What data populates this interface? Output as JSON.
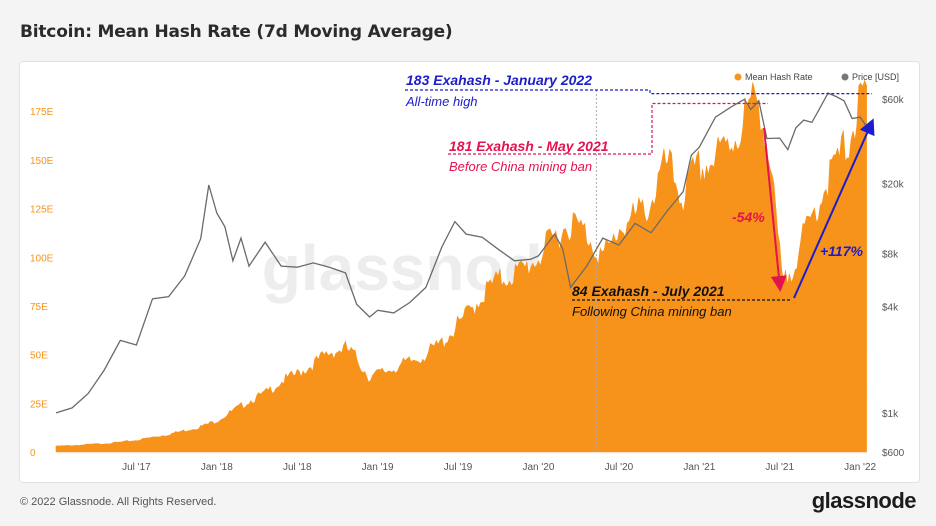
{
  "header": {
    "title": "Bitcoin: Mean Hash Rate (7d Moving Average)"
  },
  "footer": {
    "copyright": "© 2022 Glassnode. All Rights Reserved.",
    "brand": "glassnode"
  },
  "watermark": "glassnode",
  "colors": {
    "hash": "#f7931a",
    "price": "#777777",
    "blue": "#1d1dc9",
    "pink": "#e3134f",
    "black": "#111111"
  },
  "chart_data": {
    "type": "area",
    "title": "Bitcoin: Mean Hash Rate (7d Moving Average)",
    "x_range": [
      2017.0,
      2022.08
    ],
    "x_ticks": [
      {
        "t": 2017.5,
        "label": "Jul '17"
      },
      {
        "t": 2018.0,
        "label": "Jan '18"
      },
      {
        "t": 2018.5,
        "label": "Jul '18"
      },
      {
        "t": 2019.0,
        "label": "Jan '19"
      },
      {
        "t": 2019.5,
        "label": "Jul '19"
      },
      {
        "t": 2020.0,
        "label": "Jan '20"
      },
      {
        "t": 2020.5,
        "label": "Jul '20"
      },
      {
        "t": 2021.0,
        "label": "Jan '21"
      },
      {
        "t": 2021.5,
        "label": "Jul '21"
      },
      {
        "t": 2022.0,
        "label": "Jan '22"
      }
    ],
    "left_axis": {
      "unit": "EH/s",
      "range": [
        0,
        190
      ],
      "ticks": [
        {
          "v": 0,
          "label": "0"
        },
        {
          "v": 25,
          "label": "25E"
        },
        {
          "v": 50,
          "label": "50E"
        },
        {
          "v": 75,
          "label": "75E"
        },
        {
          "v": 100,
          "label": "100E"
        },
        {
          "v": 125,
          "label": "125E"
        },
        {
          "v": 150,
          "label": "150E"
        },
        {
          "v": 175,
          "label": "175E"
        }
      ]
    },
    "right_axis": {
      "unit": "USD",
      "scale": "log",
      "range": [
        600,
        75000
      ],
      "ticks": [
        {
          "v": 600,
          "label": "$600"
        },
        {
          "v": 1000,
          "label": "$1k"
        },
        {
          "v": 4000,
          "label": "$4k"
        },
        {
          "v": 8000,
          "label": "$8k"
        },
        {
          "v": 20000,
          "label": "$20k"
        },
        {
          "v": 60000,
          "label": "$60k"
        }
      ]
    },
    "legend": [
      {
        "name": "Mean Hash Rate",
        "color": "#f7931a"
      },
      {
        "name": "Price [USD]",
        "color": "#777777"
      }
    ],
    "series": [
      {
        "name": "Mean Hash Rate",
        "axis": "left",
        "unit": "EH/s",
        "points": [
          [
            2017.0,
            3
          ],
          [
            2017.1,
            3.3
          ],
          [
            2017.2,
            3.8
          ],
          [
            2017.3,
            4.3
          ],
          [
            2017.4,
            5
          ],
          [
            2017.5,
            6
          ],
          [
            2017.6,
            7.5
          ],
          [
            2017.7,
            9
          ],
          [
            2017.8,
            11
          ],
          [
            2017.9,
            13
          ],
          [
            2018.0,
            16
          ],
          [
            2018.1,
            21
          ],
          [
            2018.2,
            26
          ],
          [
            2018.3,
            30
          ],
          [
            2018.4,
            36
          ],
          [
            2018.5,
            40
          ],
          [
            2018.6,
            45
          ],
          [
            2018.7,
            51
          ],
          [
            2018.8,
            53
          ],
          [
            2018.85,
            50
          ],
          [
            2018.9,
            44
          ],
          [
            2018.95,
            38
          ],
          [
            2019.0,
            40
          ],
          [
            2019.1,
            43
          ],
          [
            2019.2,
            46
          ],
          [
            2019.3,
            50
          ],
          [
            2019.4,
            56
          ],
          [
            2019.5,
            65
          ],
          [
            2019.6,
            75
          ],
          [
            2019.7,
            85
          ],
          [
            2019.8,
            90
          ],
          [
            2019.9,
            93
          ],
          [
            2020.0,
            100
          ],
          [
            2020.1,
            110
          ],
          [
            2020.2,
            118
          ],
          [
            2020.3,
            112
          ],
          [
            2020.4,
            100
          ],
          [
            2020.45,
            105
          ],
          [
            2020.5,
            115
          ],
          [
            2020.6,
            120
          ],
          [
            2020.7,
            128
          ],
          [
            2020.75,
            140
          ],
          [
            2020.8,
            148
          ],
          [
            2020.9,
            130
          ],
          [
            2020.95,
            140
          ],
          [
            2021.0,
            145
          ],
          [
            2021.1,
            150
          ],
          [
            2021.2,
            160
          ],
          [
            2021.25,
            165
          ],
          [
            2021.3,
            175
          ],
          [
            2021.37,
            181
          ],
          [
            2021.4,
            170
          ],
          [
            2021.45,
            140
          ],
          [
            2021.5,
            100
          ],
          [
            2021.52,
            84
          ],
          [
            2021.55,
            90
          ],
          [
            2021.6,
            100
          ],
          [
            2021.7,
            120
          ],
          [
            2021.8,
            140
          ],
          [
            2021.9,
            155
          ],
          [
            2021.95,
            165
          ],
          [
            2022.0,
            178
          ],
          [
            2022.04,
            183
          ]
        ]
      },
      {
        "name": "Price [USD]",
        "axis": "right",
        "unit": "USD",
        "points": [
          [
            2017.0,
            1000
          ],
          [
            2017.1,
            1100
          ],
          [
            2017.2,
            1250
          ],
          [
            2017.3,
            1800
          ],
          [
            2017.4,
            2500
          ],
          [
            2017.5,
            2500
          ],
          [
            2017.6,
            4300
          ],
          [
            2017.7,
            4700
          ],
          [
            2017.8,
            5800
          ],
          [
            2017.9,
            10000
          ],
          [
            2017.95,
            19000
          ],
          [
            2018.0,
            14000
          ],
          [
            2018.05,
            11000
          ],
          [
            2018.1,
            7500
          ],
          [
            2018.15,
            9500
          ],
          [
            2018.2,
            7000
          ],
          [
            2018.3,
            9000
          ],
          [
            2018.4,
            7000
          ],
          [
            2018.5,
            6500
          ],
          [
            2018.6,
            7300
          ],
          [
            2018.7,
            6500
          ],
          [
            2018.8,
            6400
          ],
          [
            2018.87,
            4000
          ],
          [
            2018.95,
            3600
          ],
          [
            2019.0,
            3700
          ],
          [
            2019.1,
            3800
          ],
          [
            2019.2,
            4100
          ],
          [
            2019.3,
            5300
          ],
          [
            2019.4,
            8500
          ],
          [
            2019.48,
            12500
          ],
          [
            2019.55,
            10000
          ],
          [
            2019.65,
            10200
          ],
          [
            2019.75,
            8200
          ],
          [
            2019.85,
            7500
          ],
          [
            2019.95,
            7200
          ],
          [
            2020.0,
            8000
          ],
          [
            2020.1,
            10000
          ],
          [
            2020.15,
            8800
          ],
          [
            2020.2,
            5000
          ],
          [
            2020.3,
            7000
          ],
          [
            2020.4,
            9500
          ],
          [
            2020.5,
            9200
          ],
          [
            2020.6,
            11500
          ],
          [
            2020.7,
            10800
          ],
          [
            2020.8,
            13500
          ],
          [
            2020.9,
            18500
          ],
          [
            2020.95,
            28000
          ],
          [
            2021.0,
            33000
          ],
          [
            2021.1,
            46000
          ],
          [
            2021.2,
            56000
          ],
          [
            2021.28,
            58000
          ],
          [
            2021.32,
            54000
          ],
          [
            2021.37,
            57000
          ],
          [
            2021.42,
            37000
          ],
          [
            2021.5,
            35000
          ],
          [
            2021.55,
            32000
          ],
          [
            2021.6,
            40000
          ],
          [
            2021.65,
            47000
          ],
          [
            2021.7,
            43000
          ],
          [
            2021.75,
            55000
          ],
          [
            2021.8,
            63000
          ],
          [
            2021.85,
            64000
          ],
          [
            2021.9,
            57000
          ],
          [
            2021.95,
            48000
          ],
          [
            2022.0,
            46000
          ],
          [
            2022.04,
            42000
          ]
        ]
      }
    ],
    "annotations": [
      {
        "title": "183 Exahash - January 2022",
        "subtitle": "All-time high",
        "color": "blue"
      },
      {
        "title": "181 Exahash - May 2021",
        "subtitle": "Before China mining ban",
        "color": "pink"
      },
      {
        "title": "84 Exahash - July 2021",
        "subtitle": "Following China mining ban",
        "color": "black"
      },
      {
        "label": "-54%",
        "color": "pink"
      },
      {
        "label": "+117%",
        "color": "blue"
      }
    ]
  }
}
